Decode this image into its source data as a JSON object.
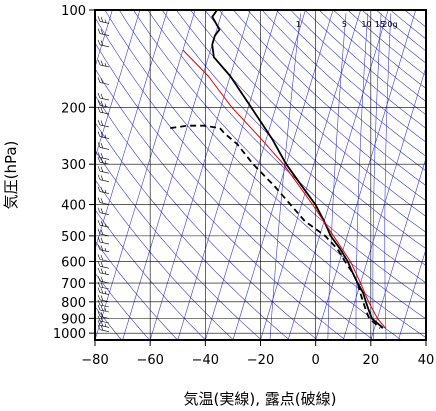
{
  "chart_data": {
    "type": "line",
    "subtype": "skew-t log-p diagram",
    "title": "",
    "xlabel": "気温(実線), 露点(破線)",
    "ylabel": "気圧(hPa)",
    "xlim": [
      -80,
      40
    ],
    "ylim": [
      1000,
      100
    ],
    "y_scale": "log",
    "x_ticks": [
      -80,
      -60,
      -40,
      -20,
      0,
      20,
      40
    ],
    "y_ticks": [
      100,
      200,
      300,
      400,
      500,
      600,
      700,
      800,
      900,
      1000
    ],
    "mixing_ratio_labels": [
      "1",
      "5",
      "10",
      "15",
      "20g"
    ],
    "grid": true,
    "colors": {
      "isolines": "#3a3acc",
      "grid": "#000000",
      "temperature": "#000000",
      "dewpoint": "#000000",
      "parcel": "#e00000"
    },
    "series": [
      {
        "key": "temperature",
        "style": "solid",
        "points": [
          {
            "p": 100,
            "t": -72
          },
          {
            "p": 105,
            "t": -73
          },
          {
            "p": 115,
            "t": -69
          },
          {
            "p": 120,
            "t": -70
          },
          {
            "p": 128,
            "t": -70
          },
          {
            "p": 140,
            "t": -68
          },
          {
            "p": 160,
            "t": -60
          },
          {
            "p": 200,
            "t": -49
          },
          {
            "p": 250,
            "t": -38
          },
          {
            "p": 300,
            "t": -30
          },
          {
            "p": 350,
            "t": -22
          },
          {
            "p": 400,
            "t": -15
          },
          {
            "p": 450,
            "t": -10
          },
          {
            "p": 500,
            "t": -6
          },
          {
            "p": 550,
            "t": -1
          },
          {
            "p": 600,
            "t": 3
          },
          {
            "p": 650,
            "t": 6
          },
          {
            "p": 700,
            "t": 9
          },
          {
            "p": 750,
            "t": 12
          },
          {
            "p": 800,
            "t": 14
          },
          {
            "p": 850,
            "t": 16
          },
          {
            "p": 900,
            "t": 18
          },
          {
            "p": 950,
            "t": 22
          },
          {
            "p": 965,
            "t": 23
          }
        ]
      },
      {
        "key": "dewpoint",
        "style": "dashed",
        "points": [
          {
            "p": 232,
            "t": -76
          },
          {
            "p": 228,
            "t": -70
          },
          {
            "p": 228,
            "t": -64
          },
          {
            "p": 232,
            "t": -58
          },
          {
            "p": 240,
            "t": -56
          },
          {
            "p": 260,
            "t": -50
          },
          {
            "p": 300,
            "t": -42
          },
          {
            "p": 350,
            "t": -32
          },
          {
            "p": 400,
            "t": -24
          },
          {
            "p": 450,
            "t": -17
          },
          {
            "p": 500,
            "t": -8
          },
          {
            "p": 550,
            "t": -2
          },
          {
            "p": 600,
            "t": 2
          },
          {
            "p": 650,
            "t": 6
          },
          {
            "p": 700,
            "t": 9
          },
          {
            "p": 750,
            "t": 11
          },
          {
            "p": 800,
            "t": 13
          },
          {
            "p": 850,
            "t": 15
          },
          {
            "p": 900,
            "t": 17
          },
          {
            "p": 950,
            "t": 21
          },
          {
            "p": 965,
            "t": 22
          }
        ]
      },
      {
        "key": "parcel",
        "style": "solid",
        "points": [
          {
            "p": 133,
            "t": -80
          },
          {
            "p": 160,
            "t": -68
          },
          {
            "p": 200,
            "t": -56
          },
          {
            "p": 250,
            "t": -42
          },
          {
            "p": 300,
            "t": -31
          },
          {
            "p": 400,
            "t": -16
          },
          {
            "p": 500,
            "t": -5
          },
          {
            "p": 600,
            "t": 4
          },
          {
            "p": 700,
            "t": 10
          },
          {
            "p": 800,
            "t": 15
          },
          {
            "p": 900,
            "t": 20
          },
          {
            "p": 965,
            "t": 24
          }
        ]
      }
    ],
    "wind_barbs": {
      "position": "left column",
      "levels": [
        110,
        120,
        130,
        150,
        170,
        190,
        200,
        210,
        230,
        250,
        270,
        290,
        300,
        320,
        340,
        370,
        400,
        430,
        470,
        500,
        530,
        560,
        600,
        630,
        660,
        700,
        730,
        760,
        800,
        830,
        860,
        900,
        930,
        960,
        990
      ]
    }
  }
}
